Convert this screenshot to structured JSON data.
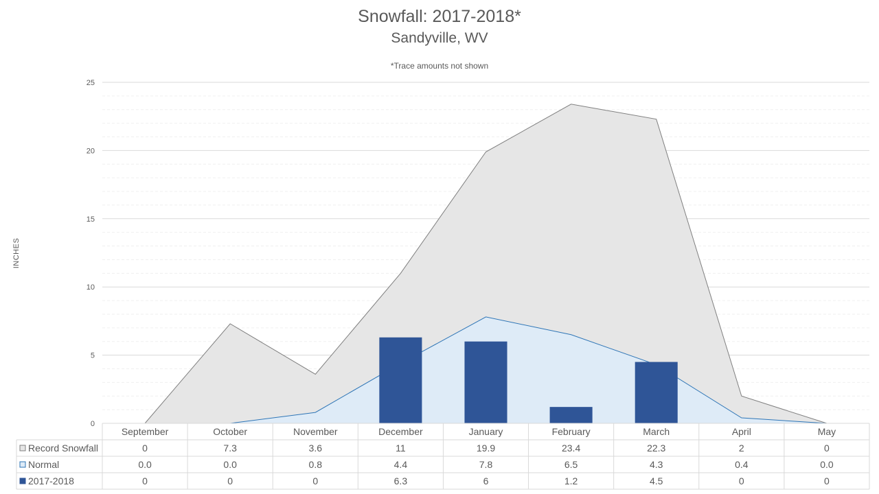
{
  "chart_data": {
    "type": "bar",
    "title": "Snowfall: 2017-2018*",
    "subtitle": "Sandyville, WV",
    "note": "*Trace amounts not shown",
    "ylabel": "INCHES",
    "xlabel": "",
    "ylim": [
      0,
      25
    ],
    "yticks": [
      0,
      5,
      10,
      15,
      20,
      25
    ],
    "grid": true,
    "legend": "data-table-left",
    "categories": [
      "September",
      "October",
      "November",
      "December",
      "January",
      "February",
      "March",
      "April",
      "May"
    ],
    "series": [
      {
        "name": "Record Snowfall",
        "type": "area",
        "color": "#E6E6E6",
        "stroke": "#7F7F7F",
        "values": [
          0,
          7.3,
          3.6,
          11,
          19.9,
          23.4,
          22.3,
          2,
          0
        ],
        "table": [
          "0",
          "7.3",
          "3.6",
          "11",
          "19.9",
          "23.4",
          "22.3",
          "2",
          "0"
        ]
      },
      {
        "name": "Normal",
        "type": "area",
        "color": "#DEEBF7",
        "stroke": "#2E75B6",
        "values": [
          0.0,
          0.0,
          0.8,
          4.4,
          7.8,
          6.5,
          4.3,
          0.4,
          0.0
        ],
        "table": [
          "0.0",
          "0.0",
          "0.8",
          "4.4",
          "7.8",
          "6.5",
          "4.3",
          "0.4",
          "0.0"
        ]
      },
      {
        "name": "2017-2018",
        "type": "bar",
        "color": "#2F5597",
        "stroke": "#2F5597",
        "values": [
          0,
          0,
          0,
          6.3,
          6,
          1.2,
          4.5,
          0,
          0
        ],
        "table": [
          "0",
          "0",
          "0",
          "6.3",
          "6",
          "1.2",
          "4.5",
          "0",
          "0"
        ]
      }
    ]
  }
}
